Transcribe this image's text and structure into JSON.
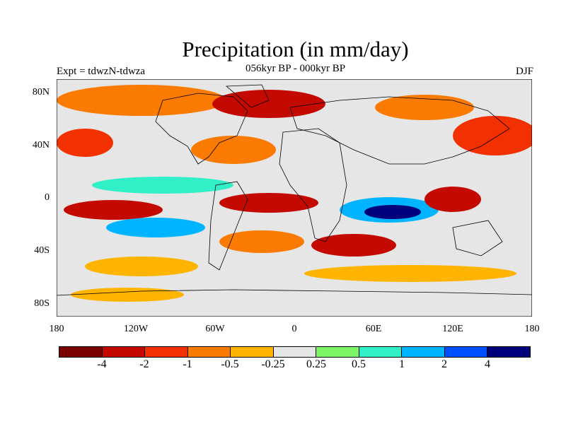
{
  "title": "Precipitation (in mm/day)",
  "subtitle": "056kyr BP - 000kyr BP",
  "expt": "Expt = tdwzN-tdwza",
  "season": "DJF",
  "map": {
    "projection": "cylindrical equidistant",
    "lon_range": [
      -180,
      180
    ],
    "lat_range": [
      -90,
      90
    ],
    "lat_ticks": [
      "80N",
      "40N",
      "0",
      "40S",
      "80S"
    ],
    "lon_ticks": [
      "180",
      "120W",
      "60W",
      "0",
      "60E",
      "120E",
      "180"
    ],
    "background_color": "#e6e6e6",
    "coastline_color": "#000000"
  },
  "colorbar": {
    "colors": [
      "#7a0000",
      "#c40a00",
      "#f23000",
      "#fb7a00",
      "#ffb400",
      "#e6e6e6",
      "#7df564",
      "#31f0c8",
      "#00b4ff",
      "#0050ff",
      "#00007a"
    ],
    "labels": [
      "-4",
      "-2",
      "-1",
      "-0.5",
      "-0.25",
      "0.25",
      "0.5",
      "1",
      "2",
      "4"
    ]
  }
}
